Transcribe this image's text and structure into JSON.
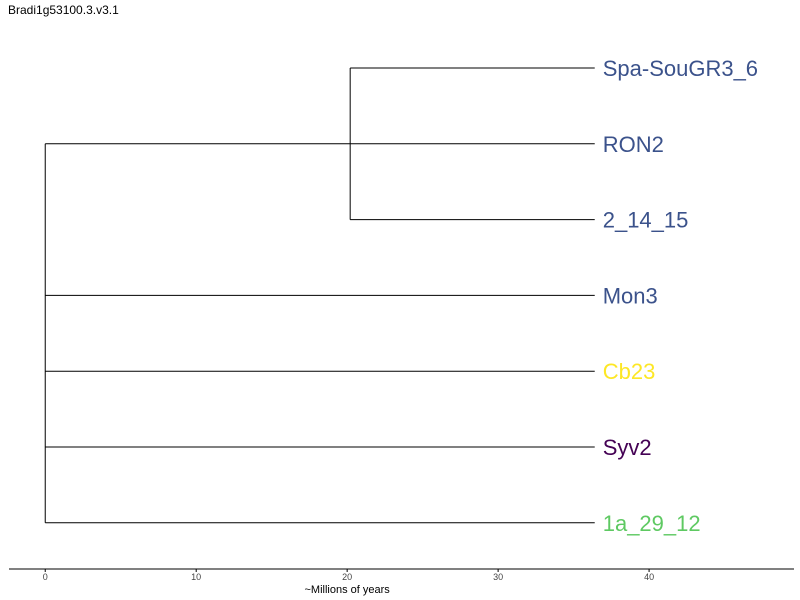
{
  "title": "Bradi1g53100.3.v3.1",
  "chart_data": {
    "type": "dendrogram",
    "xlabel": "~Millions of years",
    "xlim": [
      -2.4,
      49.6
    ],
    "ticks": [
      0,
      10,
      20,
      30,
      40
    ],
    "leaf_end": 36.4,
    "root": {
      "x": 0,
      "children": [
        "RON2",
        "Mon3",
        "Cb23",
        "Syv2",
        "1a_29_12"
      ]
    },
    "internal_nodes": [
      {
        "x": 20.2,
        "parent_leaf": "RON2",
        "children": [
          "Spa-SouGR3_6",
          "2_14_15"
        ]
      }
    ],
    "leaves": [
      {
        "name": "Spa-SouGR3_6",
        "color": "#3b528b"
      },
      {
        "name": "RON2",
        "color": "#3b528b"
      },
      {
        "name": "2_14_15",
        "color": "#3b528b"
      },
      {
        "name": "Mon3",
        "color": "#3b528b"
      },
      {
        "name": "Cb23",
        "color": "#fde725"
      },
      {
        "name": "Syv2",
        "color": "#440154"
      },
      {
        "name": "1a_29_12",
        "color": "#5ec962"
      }
    ],
    "line_color": "#000000"
  }
}
